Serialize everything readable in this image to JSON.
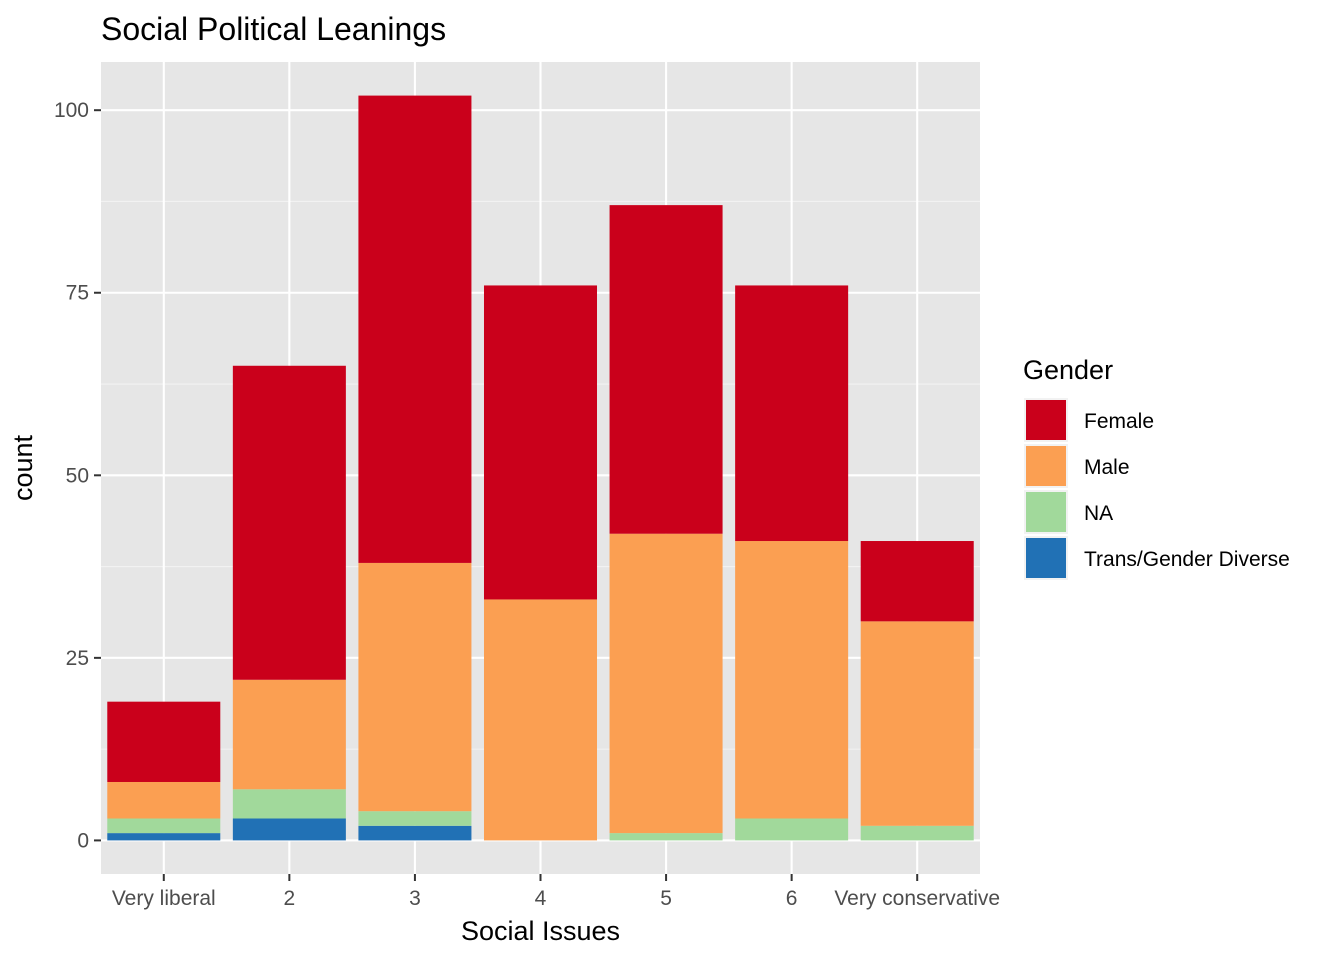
{
  "chart_data": {
    "type": "bar",
    "stacked": true,
    "title": "Social Political Leanings",
    "xlabel": "Social Issues",
    "ylabel": "count",
    "categories": [
      "Very liberal",
      "2",
      "3",
      "4",
      "5",
      "6",
      "Very conservative"
    ],
    "ylim": [
      -4.6,
      106.6
    ],
    "yticks": [
      0,
      25,
      50,
      75,
      100
    ],
    "grid": true,
    "legend": {
      "title": "Gender",
      "position": "right",
      "entries": [
        "Female",
        "Male",
        "NA",
        "Trans/Gender Diverse"
      ]
    },
    "series": [
      {
        "name": "Trans/Gender Diverse",
        "color": "#2171b5",
        "values": [
          1,
          3,
          2,
          0,
          0,
          0,
          0
        ]
      },
      {
        "name": "NA",
        "color": "#a1d99b",
        "values": [
          2,
          4,
          2,
          0,
          1,
          3,
          2
        ]
      },
      {
        "name": "Male",
        "color": "#fb9f52",
        "values": [
          5,
          15,
          34,
          33,
          41,
          38,
          28
        ]
      },
      {
        "name": "Female",
        "color": "#ca001b",
        "values": [
          11,
          43,
          64,
          43,
          45,
          35,
          11
        ]
      }
    ]
  }
}
